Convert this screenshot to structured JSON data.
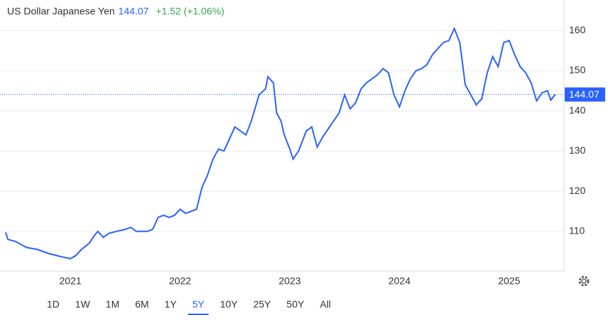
{
  "header": {
    "title": "US Dollar Japanese Yen",
    "change": "+1.52 (+1.06%)"
  },
  "chart_data": {
    "type": "line",
    "price": 144.07,
    "x": [
      2020.41,
      2020.43,
      2020.5,
      2020.6,
      2020.7,
      2020.8,
      2020.9,
      2020.95,
      2021.0,
      2021.05,
      2021.1,
      2021.17,
      2021.22,
      2021.25,
      2021.3,
      2021.35,
      2021.42,
      2021.5,
      2021.55,
      2021.6,
      2021.7,
      2021.75,
      2021.8,
      2021.85,
      2021.9,
      2021.95,
      2022.0,
      2022.05,
      2022.1,
      2022.15,
      2022.2,
      2022.25,
      2022.3,
      2022.35,
      2022.4,
      2022.45,
      2022.5,
      2022.55,
      2022.6,
      2022.65,
      2022.72,
      2022.78,
      2022.8,
      2022.85,
      2022.88,
      2022.92,
      2022.95,
      2023.0,
      2023.03,
      2023.08,
      2023.15,
      2023.2,
      2023.25,
      2023.3,
      2023.4,
      2023.45,
      2023.5,
      2023.55,
      2023.6,
      2023.65,
      2023.7,
      2023.8,
      2023.85,
      2023.9,
      2023.95,
      2024.0,
      2024.05,
      2024.1,
      2024.15,
      2024.2,
      2024.25,
      2024.3,
      2024.35,
      2024.4,
      2024.45,
      2024.5,
      2024.55,
      2024.6,
      2024.65,
      2024.7,
      2024.75,
      2024.8,
      2024.85,
      2024.9,
      2024.95,
      2025.0,
      2025.05,
      2025.1,
      2025.15,
      2025.2,
      2025.25,
      2025.3,
      2025.35,
      2025.38,
      2025.42
    ],
    "series": [
      {
        "name": "USD/JPY",
        "color": "#2962ff",
        "values": [
          109.8,
          108,
          107.5,
          106,
          105.5,
          104.5,
          103.8,
          103.5,
          103.2,
          104,
          105.5,
          107,
          109,
          110,
          108.5,
          109.5,
          110,
          110.5,
          111,
          110,
          110,
          110.5,
          113.5,
          114,
          113.5,
          114,
          115.5,
          114.5,
          115,
          115.5,
          121,
          124,
          128,
          130.5,
          130,
          133,
          136,
          135,
          134,
          137.5,
          144,
          145.5,
          148.5,
          147,
          139.5,
          137.5,
          134,
          130.5,
          128,
          130,
          135,
          136,
          131,
          133.5,
          137.5,
          139.5,
          144,
          140.5,
          142,
          145.5,
          147,
          149,
          150.5,
          149.5,
          144,
          141,
          145,
          148,
          150,
          150.5,
          151.5,
          154,
          155.5,
          157,
          157.5,
          160.5,
          157,
          146.5,
          144,
          141.5,
          143,
          149.5,
          153.5,
          151,
          157,
          157.5,
          154,
          151,
          149.5,
          147,
          142.5,
          144.5,
          145,
          142.7,
          144.07
        ]
      }
    ],
    "xlim": [
      2020.41,
      2025.5
    ],
    "xticks": [
      2021,
      2022,
      2023,
      2024,
      2025
    ],
    "ylim": [
      100.1,
      167.6
    ],
    "yticks": [
      110,
      120,
      130,
      140,
      150,
      160
    ],
    "grid": true
  },
  "ranges": [
    "1D",
    "1W",
    "1M",
    "6M",
    "1Y",
    "5Y",
    "10Y",
    "25Y",
    "50Y",
    "All"
  ],
  "selected_range": 5
}
